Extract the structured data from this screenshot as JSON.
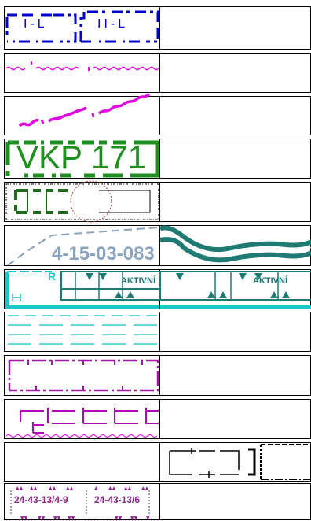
{
  "legend": {
    "title": "",
    "samples": [
      {
        "id": "s1",
        "text_left": "I-L",
        "text_right": "II-L",
        "color": "#0000cc"
      },
      {
        "id": "s2",
        "color": "#e000e0"
      },
      {
        "id": "s3",
        "color": "#e000e0"
      },
      {
        "id": "s4",
        "text": "VKP 171",
        "color": "#1f8f1f"
      },
      {
        "id": "s5",
        "color": "#1e6b1e",
        "accent": "#b33a3a"
      },
      {
        "id": "s6",
        "text": "4-15-03-083",
        "color": "#8aa3bf",
        "accent": "#1e7a72"
      },
      {
        "id": "s7",
        "text_left_label": "AKTIVNÍ",
        "text_right_label": "AKTIVNÍ",
        "mark": "R",
        "color": "#1cc7c7",
        "accent": "#1e7a72"
      },
      {
        "id": "s8",
        "color": "#35cccc"
      },
      {
        "id": "s9",
        "color": "#9b1b9b"
      },
      {
        "id": "s10",
        "color": "#b400b4",
        "accent": "#e000e0"
      },
      {
        "id": "s11",
        "color": "#000000"
      },
      {
        "id": "s12",
        "text_left": "24-43-13/4-9",
        "text_right": "24-43-13/6",
        "color": "#8a2a8a"
      }
    ]
  }
}
